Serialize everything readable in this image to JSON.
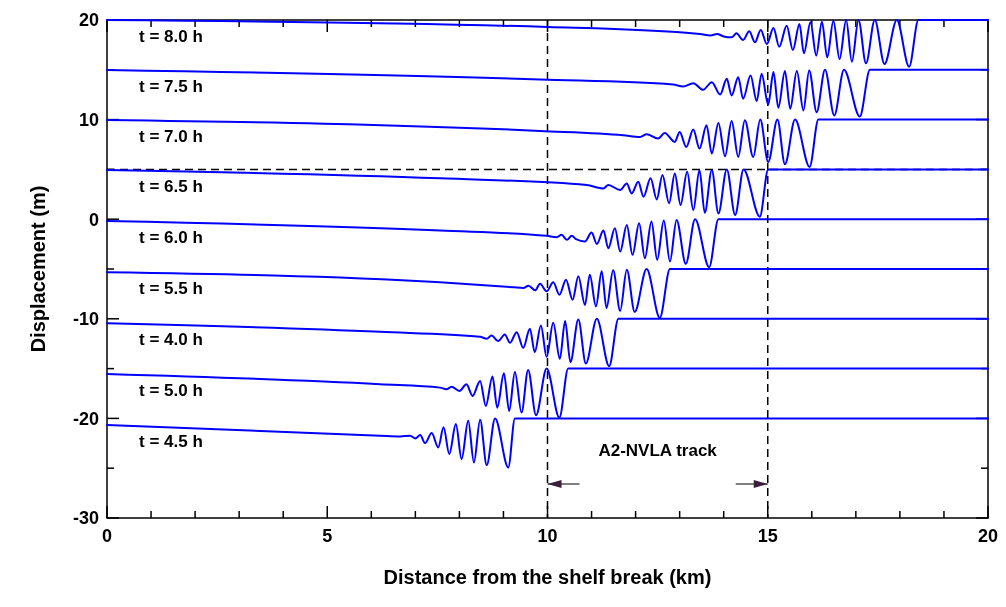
{
  "chart_data": {
    "type": "line",
    "xlabel": "Distance from the shelf break (km)",
    "ylabel": "Displacement (m)",
    "xlim": [
      0,
      20
    ],
    "ylim": [
      -30,
      20
    ],
    "xticks": [
      0,
      {
        "value": 1,
        "label": null
      },
      {
        "value": 2,
        "label": null
      },
      {
        "value": 3,
        "label": null
      },
      {
        "value": 4,
        "label": null
      },
      5,
      {
        "value": 6,
        "label": null
      },
      {
        "value": 7,
        "label": null
      },
      {
        "value": 8,
        "label": null
      },
      {
        "value": 9,
        "label": null
      },
      10,
      {
        "value": 11,
        "label": null
      },
      {
        "value": 12,
        "label": null
      },
      {
        "value": 13,
        "label": null
      },
      {
        "value": 14,
        "label": null
      },
      15,
      {
        "value": 16,
        "label": null
      },
      {
        "value": 17,
        "label": null
      },
      {
        "value": 18,
        "label": null
      },
      {
        "value": 19,
        "label": null
      },
      20
    ],
    "yticks": [
      -30,
      {
        "value": -25,
        "label": null
      },
      -20,
      {
        "value": -15,
        "label": null
      },
      -10,
      {
        "value": -5,
        "label": null
      },
      0,
      {
        "value": 5,
        "label": null
      },
      10,
      {
        "value": 15,
        "label": null
      },
      20
    ],
    "grid": false,
    "legend": false,
    "marker": "none",
    "line_style": "solid",
    "ref_lines": [
      {
        "axis": "x",
        "value": 10,
        "color": "#000000",
        "line_style": "dashed"
      },
      {
        "axis": "x",
        "value": 15,
        "color": "#000000",
        "line_style": "dashed"
      },
      {
        "axis": "y",
        "value": 5,
        "color": "#000000",
        "line_style": "dashed"
      }
    ],
    "annotations": [
      "A2-NVLA track"
    ],
    "series": [
      {
        "name": "t = 8.0 h",
        "color": "#0000ff",
        "x": [
          0,
          10,
          13.46,
          13.7,
          13.85,
          14.0,
          14.18,
          14.29,
          14.44,
          14.58,
          14.71,
          14.84,
          14.98,
          15.13,
          15.26,
          15.43,
          15.57,
          15.72,
          15.82,
          15.97,
          16.1,
          16.23,
          16.35,
          16.49,
          16.63,
          16.78,
          16.91,
          17.06,
          17.23,
          17.43,
          17.65,
          17.93,
          18.21,
          18.42,
          20
        ],
        "values": [
          20,
          19.3,
          18.6,
          18.45,
          18.6,
          18.35,
          18.26,
          18.66,
          17.99,
          18.86,
          17.76,
          19.0,
          17.59,
          19.2,
          17.32,
          19.43,
          16.99,
          19.6,
          16.65,
          19.77,
          16.42,
          19.83,
          16.25,
          19.93,
          16.08,
          20,
          15.82,
          20,
          15.65,
          20,
          15.58,
          20,
          15.31,
          20,
          20
        ]
      },
      {
        "name": "t = 7.5 h",
        "color": "#0000ff",
        "x": [
          0,
          9.83,
          12.85,
          13.08,
          13.31,
          13.53,
          13.73,
          13.92,
          14.07,
          14.18,
          14.33,
          14.44,
          14.61,
          14.75,
          14.86,
          15.01,
          15.13,
          15.24,
          15.39,
          15.51,
          15.66,
          15.81,
          15.94,
          16.11,
          16.3,
          16.51,
          16.73,
          17.09,
          17.32,
          20
        ],
        "values": [
          14.98,
          14.03,
          13.53,
          13.33,
          13.66,
          12.99,
          13.76,
          12.52,
          14.1,
          12.42,
          14.26,
          12.09,
          14.43,
          11.85,
          14.6,
          11.52,
          14.77,
          11.18,
          14.87,
          11.08,
          14.87,
          10.92,
          14.93,
          10.75,
          15,
          10.41,
          15,
          10.31,
          15,
          15
        ]
      },
      {
        "name": "t = 7.0 h",
        "color": "#0000ff",
        "x": [
          0,
          9.83,
          11.72,
          12.1,
          12.25,
          12.51,
          12.66,
          12.89,
          13.0,
          13.15,
          13.31,
          13.45,
          13.61,
          13.73,
          13.88,
          14.03,
          14.18,
          14.33,
          14.48,
          14.67,
          14.83,
          15.01,
          15.22,
          15.39,
          15.62,
          15.95,
          16.15,
          20
        ],
        "values": [
          9.96,
          8.86,
          8.43,
          8.26,
          8.53,
          8.09,
          8.66,
          7.76,
          8.76,
          7.26,
          9.0,
          7.09,
          9.43,
          6.59,
          9.67,
          6.32,
          9.87,
          6.25,
          9.93,
          6.25,
          10,
          5.75,
          10,
          5.52,
          10,
          5.25,
          10,
          10
        ]
      },
      {
        "name": "t = 6.5 h",
        "color": "#0000ff",
        "x": [
          0,
          7.56,
          10.89,
          11.27,
          11.38,
          11.65,
          11.8,
          11.91,
          12.06,
          12.18,
          12.34,
          12.48,
          12.61,
          12.76,
          12.89,
          13.02,
          13.17,
          13.31,
          13.45,
          13.57,
          13.73,
          13.88,
          14.07,
          14.26,
          14.45,
          14.82,
          15.01,
          20
        ],
        "values": [
          4.94,
          4.1,
          3.43,
          3.09,
          3.43,
          2.93,
          3.59,
          2.59,
          3.76,
          2.26,
          4.1,
          1.99,
          4.43,
          1.59,
          4.6,
          1.42,
          4.77,
          0.92,
          4.93,
          0.65,
          4.93,
          0.58,
          5,
          0.42,
          5,
          0.25,
          5,
          5
        ]
      },
      {
        "name": "t = 6.0 h",
        "color": "#0000ff",
        "x": [
          0,
          7.56,
          9.98,
          10.21,
          10.32,
          10.44,
          10.55,
          10.65,
          10.85,
          11.0,
          11.12,
          11.27,
          11.38,
          11.53,
          11.65,
          11.8,
          11.93,
          12.08,
          12.21,
          12.36,
          12.49,
          12.64,
          12.78,
          12.93,
          13.14,
          13.35,
          13.67,
          13.88,
          20
        ],
        "values": [
          -0.18,
          -1.14,
          -1.67,
          -1.81,
          -1.57,
          -2.07,
          -1.67,
          -2.01,
          -2.24,
          -1.34,
          -2.48,
          -1.14,
          -2.91,
          -0.9,
          -3.25,
          -0.57,
          -3.58,
          -0.4,
          -3.92,
          -0.23,
          -4.08,
          -0.13,
          -4.25,
          -0.07,
          -4.48,
          0,
          -4.82,
          0,
          0
        ]
      },
      {
        "name": "t = 5.5 h",
        "color": "#0000ff",
        "x": [
          0,
          7.56,
          9.23,
          9.45,
          9.57,
          9.72,
          9.83,
          9.98,
          10.13,
          10.27,
          10.42,
          10.57,
          10.7,
          10.85,
          10.96,
          11.1,
          11.23,
          11.34,
          11.49,
          11.65,
          11.8,
          11.98,
          12.25,
          12.55,
          12.78,
          20
        ],
        "values": [
          -5.33,
          -6.34,
          -6.84,
          -6.91,
          -6.67,
          -7.14,
          -6.47,
          -7.24,
          -6.34,
          -7.58,
          -6.07,
          -8.08,
          -5.74,
          -8.62,
          -5.57,
          -8.75,
          -5.23,
          -8.92,
          -5.13,
          -9.2,
          -5.07,
          -9.3,
          -5,
          -9.9,
          -5,
          -5
        ]
      },
      {
        "name": "t = 4.0 h",
        "color": "#0000ff",
        "x": [
          0,
          6.2,
          8.47,
          8.62,
          8.73,
          8.88,
          9.03,
          9.15,
          9.3,
          9.45,
          9.6,
          9.71,
          9.85,
          9.98,
          10.13,
          10.28,
          10.4,
          10.52,
          10.7,
          10.87,
          11.12,
          11.4,
          11.61,
          20
        ],
        "values": [
          -10.45,
          -11.31,
          -11.81,
          -12.0,
          -11.67,
          -12.24,
          -11.57,
          -12.41,
          -11.34,
          -12.91,
          -11.0,
          -13.35,
          -10.67,
          -13.82,
          -10.4,
          -14.02,
          -10.23,
          -14.35,
          -10.07,
          -14.48,
          -10,
          -14.75,
          -10,
          -10
        ]
      },
      {
        "name": "t = 5.0 h",
        "color": "#0000ff",
        "x": [
          0,
          6.2,
          7.56,
          7.71,
          7.82,
          8.0,
          8.16,
          8.3,
          8.47,
          8.6,
          8.75,
          8.86,
          9.01,
          9.13,
          9.26,
          9.41,
          9.56,
          9.74,
          9.98,
          10.27,
          10.47,
          20
        ],
        "values": [
          -15.54,
          -16.57,
          -16.91,
          -17.07,
          -16.81,
          -17.24,
          -16.57,
          -17.74,
          -16.24,
          -18.75,
          -15.8,
          -18.92,
          -15.47,
          -19.25,
          -15.33,
          -19.42,
          -15.13,
          -19.69,
          -15,
          -19.92,
          -15,
          -15
        ]
      },
      {
        "name": "t = 4.5 h",
        "color": "#0000ff",
        "x": [
          0,
          6.2,
          6.66,
          6.88,
          7.0,
          7.11,
          7.22,
          7.37,
          7.52,
          7.64,
          7.77,
          7.92,
          8.05,
          8.2,
          8.33,
          8.47,
          8.62,
          8.81,
          9.11,
          9.26,
          20
        ],
        "values": [
          -20.66,
          -21.74,
          -21.81,
          -21.74,
          -22.01,
          -21.67,
          -22.48,
          -21.47,
          -22.91,
          -20.9,
          -23.58,
          -20.57,
          -24.08,
          -20.23,
          -24.42,
          -20.13,
          -24.69,
          -20,
          -24.92,
          -20,
          -20
        ]
      }
    ]
  }
}
